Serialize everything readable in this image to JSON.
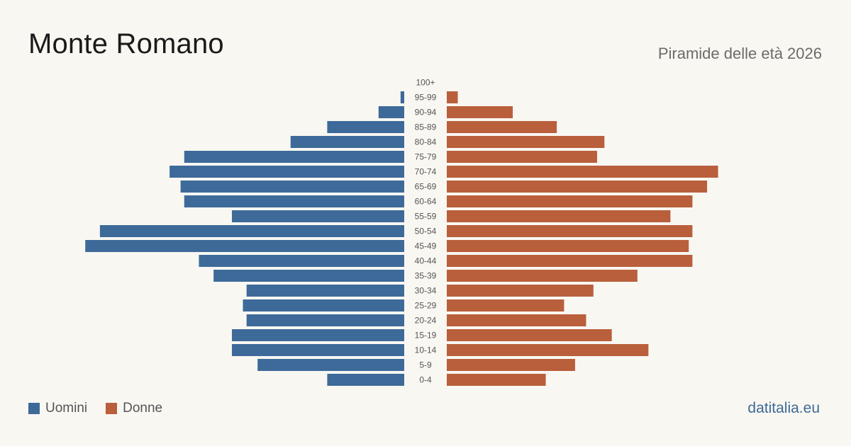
{
  "header": {
    "title": "Monte Romano",
    "subtitle": "Piramide delle età 2026"
  },
  "legend": {
    "men_label": "Uomini",
    "women_label": "Donne"
  },
  "footer": {
    "source": "datitalia.eu"
  },
  "colors": {
    "men": "#3d6a99",
    "women": "#b95f3c",
    "background": "#f9f7f2"
  },
  "chart_data": {
    "type": "bar",
    "orientation": "horizontal-pyramid",
    "categories": [
      "100+",
      "95-99",
      "90-94",
      "85-89",
      "80-84",
      "75-79",
      "70-74",
      "65-69",
      "60-64",
      "55-59",
      "50-54",
      "45-49",
      "40-44",
      "35-39",
      "30-34",
      "25-29",
      "20-24",
      "15-19",
      "10-14",
      "5-9",
      "0-4"
    ],
    "series": [
      {
        "name": "Uomini",
        "values": [
          0,
          1,
          7,
          21,
          31,
          60,
          64,
          61,
          60,
          47,
          83,
          87,
          56,
          52,
          43,
          44,
          43,
          47,
          47,
          40,
          21
        ]
      },
      {
        "name": "Donne",
        "values": [
          0,
          3,
          18,
          30,
          43,
          41,
          74,
          71,
          67,
          61,
          67,
          66,
          67,
          52,
          40,
          32,
          38,
          45,
          55,
          35,
          27
        ]
      }
    ],
    "legend_position": "bottom-left",
    "grid": false
  }
}
